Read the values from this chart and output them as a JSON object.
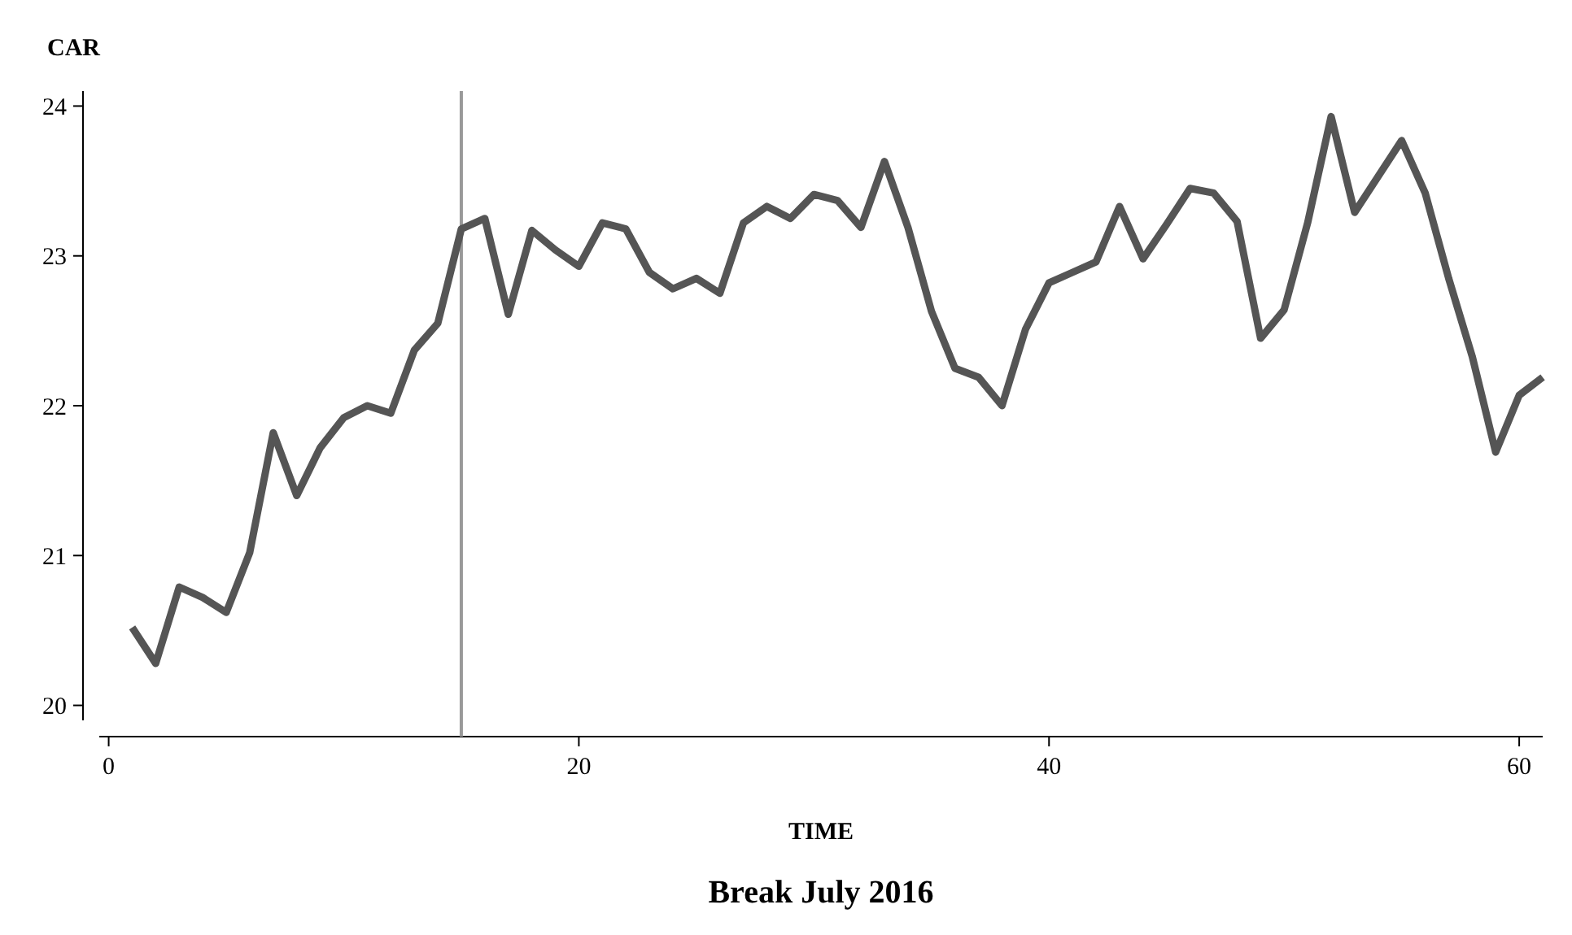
{
  "chart_data": {
    "type": "line",
    "title": "Break July 2016",
    "xlabel": "TIME",
    "ylabel": "CAR",
    "x": [
      1,
      2,
      3,
      4,
      5,
      6,
      7,
      8,
      9,
      10,
      11,
      12,
      13,
      14,
      15,
      16,
      17,
      18,
      19,
      20,
      21,
      22,
      23,
      24,
      25,
      26,
      27,
      28,
      29,
      30,
      31,
      32,
      33,
      34,
      35,
      36,
      37,
      38,
      39,
      40,
      41,
      42,
      43,
      44,
      45,
      46,
      47,
      48,
      49,
      50,
      51,
      52,
      53,
      54,
      55,
      56,
      57,
      58,
      59,
      60,
      61
    ],
    "series": [
      {
        "color": "#555555",
        "values": [
          20.52,
          20.28,
          20.79,
          20.72,
          20.62,
          21.02,
          21.82,
          21.4,
          21.72,
          21.92,
          22.0,
          21.95,
          22.37,
          22.55,
          23.18,
          23.25,
          22.61,
          23.17,
          23.04,
          22.93,
          23.22,
          23.18,
          22.89,
          22.78,
          22.85,
          22.75,
          23.22,
          23.33,
          23.25,
          23.41,
          23.37,
          23.19,
          23.63,
          23.19,
          22.63,
          22.25,
          22.19,
          22.0,
          22.51,
          22.82,
          22.89,
          22.96,
          23.33,
          22.98,
          23.21,
          23.45,
          23.42,
          23.23,
          22.45,
          22.64,
          23.22,
          23.93,
          23.29,
          23.53,
          23.77,
          23.42,
          22.85,
          22.33,
          21.69,
          22.07,
          22.19
        ]
      }
    ],
    "xlim": [
      -0.4,
      61
    ],
    "ylim": [
      19.9,
      24.1
    ],
    "xticks": [
      0,
      20,
      40,
      60
    ],
    "yticks": [
      20,
      21,
      22,
      23,
      24
    ],
    "ref_lines": [
      {
        "axis": "x",
        "value": 15,
        "color": "#999999"
      }
    ],
    "grid": false,
    "marker": "none",
    "line_style": "solid"
  }
}
